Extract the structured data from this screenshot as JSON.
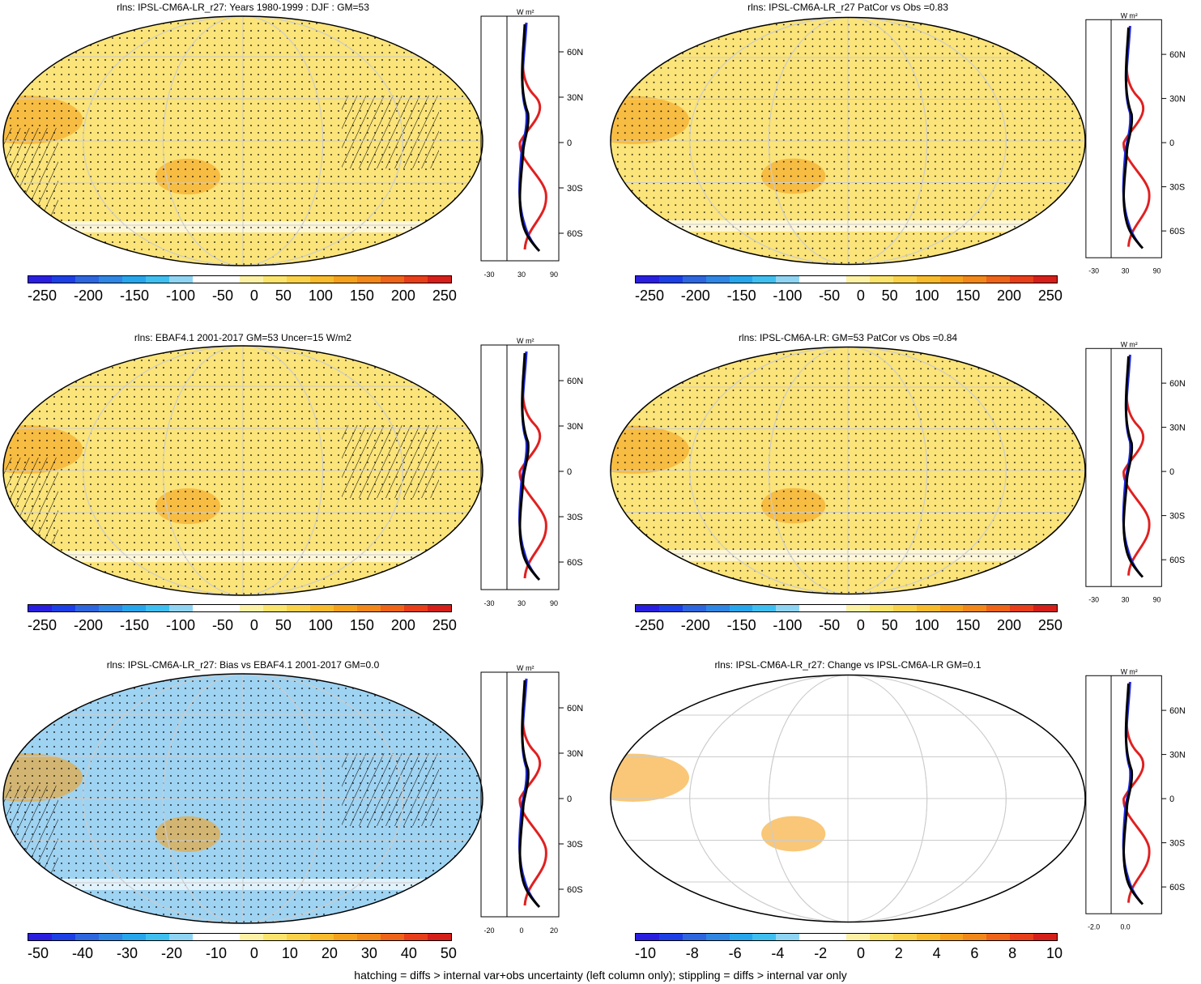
{
  "panels": [
    {
      "title": "rlns: IPSL-CM6A-LR_r27: Years 1980-1999 : DJF : GM=53",
      "cbar": [
        "-250",
        "-200",
        "-150",
        "-100",
        "-50",
        "0",
        "50",
        "100",
        "150",
        "200",
        "250"
      ],
      "zonal_ticks": [
        "-30",
        "30",
        "90"
      ],
      "lat_ticks": [
        "60N",
        "30N",
        "0",
        "30S",
        "60S"
      ],
      "unit": "W m²",
      "fill": "#fbe47a",
      "hatch": true
    },
    {
      "title": "rlns: IPSL-CM6A-LR_r27 PatCor vs Obs =0.83",
      "cbar": [
        "-250",
        "-200",
        "-150",
        "-100",
        "-50",
        "0",
        "50",
        "100",
        "150",
        "200",
        "250"
      ],
      "zonal_ticks": [
        "-30",
        "30",
        "90"
      ],
      "lat_ticks": [
        "60N",
        "30N",
        "0",
        "30S",
        "60S"
      ],
      "unit": "W m²",
      "fill": "#fbe47a",
      "hatch": false
    },
    {
      "title": "rlns: EBAF4.1 2001-2017 GM=53 Uncer=15 W/m2",
      "cbar": [
        "-250",
        "-200",
        "-150",
        "-100",
        "-50",
        "0",
        "50",
        "100",
        "150",
        "200",
        "250"
      ],
      "zonal_ticks": [
        "-30",
        "30",
        "90"
      ],
      "lat_ticks": [
        "60N",
        "30N",
        "0",
        "30S",
        "60S"
      ],
      "unit": "W m²",
      "fill": "#fbe47a",
      "hatch": true
    },
    {
      "title": "rlns: IPSL-CM6A-LR: GM=53 PatCor vs Obs =0.84",
      "cbar": [
        "-250",
        "-200",
        "-150",
        "-100",
        "-50",
        "0",
        "50",
        "100",
        "150",
        "200",
        "250"
      ],
      "zonal_ticks": [
        "-30",
        "30",
        "90"
      ],
      "lat_ticks": [
        "60N",
        "30N",
        "0",
        "30S",
        "60S"
      ],
      "unit": "W m²",
      "fill": "#fbe47a",
      "hatch": false
    },
    {
      "title": "rlns: IPSL-CM6A-LR_r27: Bias vs EBAF4.1 2001-2017 GM=0.0",
      "cbar": [
        "-50",
        "-40",
        "-30",
        "-20",
        "-10",
        "0",
        "10",
        "20",
        "30",
        "40",
        "50"
      ],
      "zonal_ticks": [
        "-20",
        "0",
        "20"
      ],
      "lat_ticks": [
        "60N",
        "30N",
        "0",
        "30S",
        "60S"
      ],
      "unit": "W m²",
      "fill": "#9fd3f2",
      "hatch": true
    },
    {
      "title": "rlns: IPSL-CM6A-LR_r27: Change vs IPSL-CM6A-LR GM=0.1",
      "cbar": [
        "-10",
        "-8",
        "-6",
        "-4",
        "-2",
        "0",
        "2",
        "4",
        "6",
        "8",
        "10"
      ],
      "zonal_ticks": [
        "-2.0",
        "0.0"
      ],
      "lat_ticks": [
        "60N",
        "30N",
        "0",
        "30S",
        "60S"
      ],
      "unit": "W m²",
      "fill": "#ffffff",
      "hatch": false
    }
  ],
  "colorbar_colors": [
    "#2a1fe0",
    "#1d3fe6",
    "#2e66e0",
    "#2f86e3",
    "#27a6ec",
    "#3fbff0",
    "#8fd4f3",
    "#ffffff",
    "#ffffff",
    "#fdf1a6",
    "#fbe46c",
    "#f9d24a",
    "#f7bb2c",
    "#f5a11c",
    "#f2871a",
    "#ee6418",
    "#e83e1a",
    "#d61f1a"
  ],
  "footer": "hatching = diffs > internal var+obs uncertainty (left column only); stippling = diffs > internal var only"
}
